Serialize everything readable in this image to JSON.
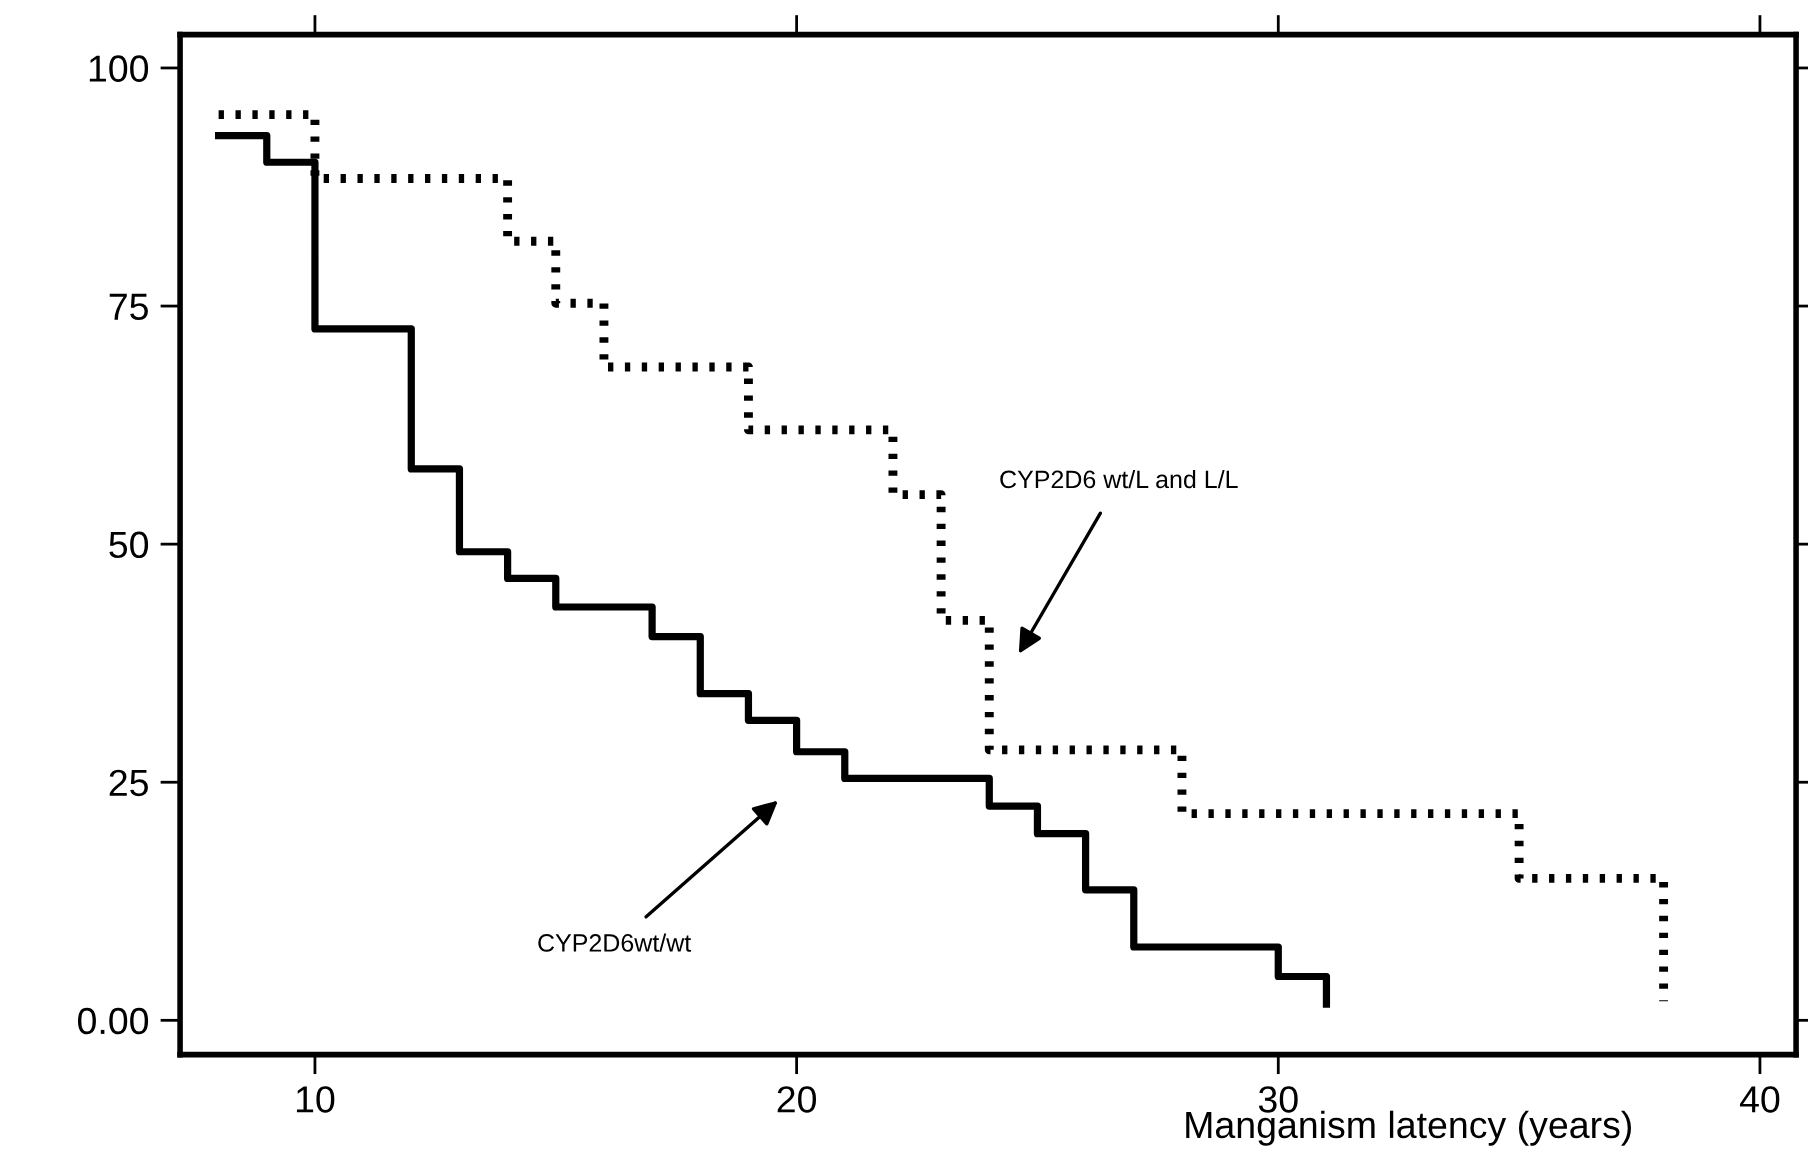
{
  "chart_data": {
    "type": "step",
    "xlabel": "Manganism latency (years)",
    "xlim": [
      7.2,
      40.75
    ],
    "xticks": [
      10,
      20,
      30,
      40
    ],
    "ylim": [
      -3.6,
      103.5
    ],
    "yticks": [
      {
        "value": 0,
        "label": "0.00"
      },
      25,
      50,
      75,
      100
    ],
    "series": [
      {
        "color": "#000000",
        "line_style": "solid",
        "x": [
          8,
          9,
          10,
          12,
          13,
          14,
          15,
          17,
          18,
          19,
          20,
          21,
          24,
          25,
          26,
          27,
          30,
          31
        ],
        "values": [
          92.9,
          90.1,
          72.6,
          57.9,
          49.2,
          46.4,
          43.4,
          40.3,
          34.3,
          31.5,
          28.2,
          25.4,
          22.5,
          19.6,
          13.7,
          7.7,
          4.6,
          1.7
        ]
      },
      {
        "color": "#000000",
        "line_style": "dotted",
        "x": [
          8,
          10,
          14,
          15,
          16,
          19,
          22,
          23,
          24,
          28,
          35,
          38
        ],
        "values": [
          95.1,
          88.4,
          81.8,
          75.3,
          68.6,
          62.0,
          55.2,
          42.0,
          28.4,
          21.7,
          14.9,
          2.0
        ]
      }
    ],
    "annotations": [
      "CYP2D6 wt/L and L/L",
      "CYP2D6wt/wt"
    ]
  }
}
